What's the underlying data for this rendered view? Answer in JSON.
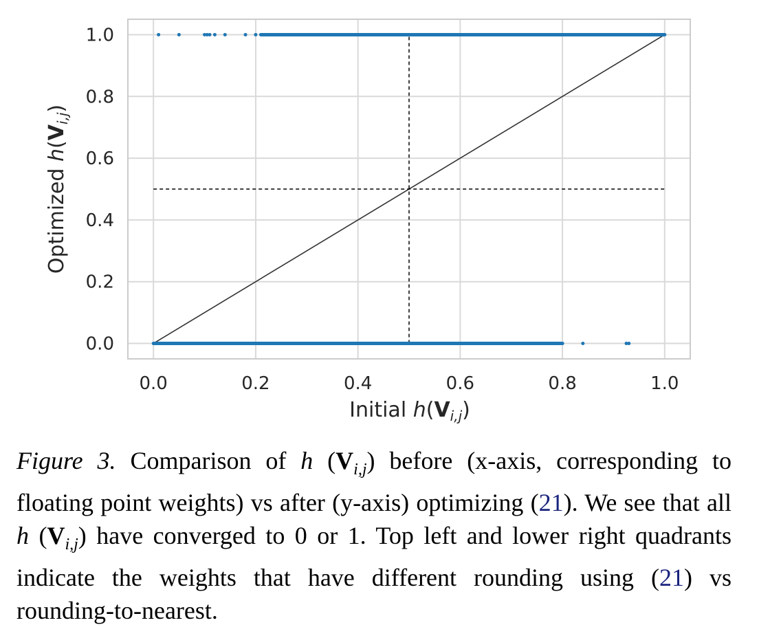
{
  "chart_data": {
    "type": "scatter",
    "xlabel": "Initial h(V_{i,j})",
    "ylabel": "Optimized h(V_{i,j})",
    "xlim": [
      -0.05,
      1.05
    ],
    "ylim": [
      -0.05,
      1.05
    ],
    "x_ticks": [
      "0.0",
      "0.2",
      "0.4",
      "0.6",
      "0.8",
      "1.0"
    ],
    "y_ticks": [
      "0.0",
      "0.2",
      "0.4",
      "0.6",
      "0.8",
      "1.0"
    ],
    "grid": true,
    "series": [
      {
        "color": "#1f77b4",
        "segments": [
          {
            "x_start": 0.21,
            "x_end": 1.0,
            "y": 1.0
          },
          {
            "x_start": 0.0,
            "x_end": 0.8,
            "y": 0.0
          }
        ],
        "points": [
          {
            "x": 0.01,
            "y": 1.0
          },
          {
            "x": 0.05,
            "y": 1.0
          },
          {
            "x": 0.1,
            "y": 1.0
          },
          {
            "x": 0.105,
            "y": 1.0
          },
          {
            "x": 0.11,
            "y": 1.0
          },
          {
            "x": 0.12,
            "y": 1.0
          },
          {
            "x": 0.14,
            "y": 1.0
          },
          {
            "x": 0.18,
            "y": 1.0
          },
          {
            "x": 0.2,
            "y": 1.0
          },
          {
            "x": 0.84,
            "y": 0.0
          },
          {
            "x": 0.925,
            "y": 0.0
          },
          {
            "x": 0.93,
            "y": 0.0
          }
        ]
      }
    ],
    "reference_lines": [
      {
        "style": "solid",
        "color": "#333333",
        "from": [
          0.0,
          0.0
        ],
        "to": [
          1.0,
          1.0
        ]
      },
      {
        "style": "dashed",
        "color": "#000000",
        "from": [
          0.5,
          0.0
        ],
        "to": [
          0.5,
          1.0
        ]
      },
      {
        "style": "dashed",
        "color": "#000000",
        "from": [
          0.0,
          0.5
        ],
        "to": [
          1.0,
          0.5
        ]
      }
    ]
  },
  "caption": {
    "figure_label": "Figure 3.",
    "text_1": " Comparison of ",
    "h": "h",
    "paren_open": " (",
    "V": "V",
    "sub": "i,j",
    "paren_close": ") ",
    "text_2": "before (x-axis, corresponding to floating point weights) vs after (y-axis) optimizing ",
    "ref_open": "(",
    "ref_num": "21",
    "ref_close": ")",
    "text_3": ". We see that all ",
    "text_4": "have converged to 0 or 1. Top left and lower right quadrants indicate the weights that have different rounding using ",
    "text_5": " vs rounding-to-nearest."
  }
}
